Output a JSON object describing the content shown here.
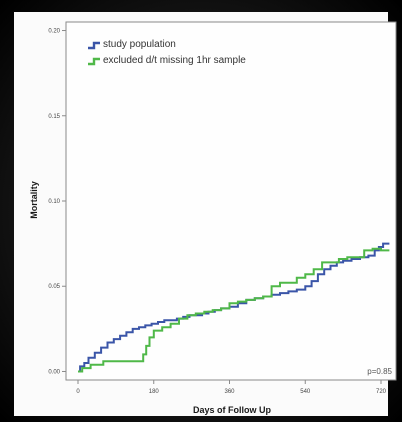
{
  "chart_data": {
    "type": "line",
    "step": true,
    "xlabel": "Days of Follow Up",
    "ylabel": "Mortality",
    "xlim": [
      0,
      740
    ],
    "ylim": [
      -0.005,
      0.205
    ],
    "xticks": [
      0,
      180,
      360,
      540,
      720
    ],
    "yticks": [
      0.0,
      0.05,
      0.1,
      0.15,
      0.2
    ],
    "ytick_labels": [
      "0.00",
      "0.05",
      "0.10",
      "0.15",
      "0.20"
    ],
    "xtick_labels": [
      "0",
      "180",
      "360",
      "540",
      "720"
    ],
    "grid": false,
    "legend_position": "top-left",
    "annotation": "p=0.85",
    "series": [
      {
        "name": "study population",
        "color": "#3a55a8",
        "points": [
          [
            0,
            0.0
          ],
          [
            5,
            0.003
          ],
          [
            15,
            0.005
          ],
          [
            25,
            0.008
          ],
          [
            40,
            0.011
          ],
          [
            55,
            0.014
          ],
          [
            70,
            0.017
          ],
          [
            85,
            0.019
          ],
          [
            100,
            0.021
          ],
          [
            115,
            0.023
          ],
          [
            130,
            0.025
          ],
          [
            145,
            0.026
          ],
          [
            160,
            0.027
          ],
          [
            175,
            0.028
          ],
          [
            190,
            0.029
          ],
          [
            205,
            0.03
          ],
          [
            220,
            0.03
          ],
          [
            235,
            0.031
          ],
          [
            250,
            0.032
          ],
          [
            265,
            0.033
          ],
          [
            280,
            0.033
          ],
          [
            295,
            0.034
          ],
          [
            310,
            0.035
          ],
          [
            325,
            0.036
          ],
          [
            340,
            0.037
          ],
          [
            360,
            0.038
          ],
          [
            380,
            0.04
          ],
          [
            400,
            0.042
          ],
          [
            420,
            0.043
          ],
          [
            440,
            0.044
          ],
          [
            460,
            0.045
          ],
          [
            480,
            0.046
          ],
          [
            500,
            0.047
          ],
          [
            520,
            0.048
          ],
          [
            540,
            0.05
          ],
          [
            555,
            0.053
          ],
          [
            570,
            0.057
          ],
          [
            585,
            0.06
          ],
          [
            600,
            0.062
          ],
          [
            615,
            0.064
          ],
          [
            630,
            0.065
          ],
          [
            650,
            0.066
          ],
          [
            670,
            0.067
          ],
          [
            690,
            0.068
          ],
          [
            705,
            0.071
          ],
          [
            715,
            0.073
          ],
          [
            725,
            0.075
          ],
          [
            740,
            0.075
          ]
        ]
      },
      {
        "name": "excluded d/t missing 1hr sample",
        "color": "#4fb848",
        "points": [
          [
            0,
            0.0
          ],
          [
            10,
            0.002
          ],
          [
            30,
            0.004
          ],
          [
            60,
            0.006
          ],
          [
            150,
            0.006
          ],
          [
            155,
            0.01
          ],
          [
            162,
            0.015
          ],
          [
            170,
            0.02
          ],
          [
            180,
            0.024
          ],
          [
            200,
            0.026
          ],
          [
            220,
            0.028
          ],
          [
            240,
            0.031
          ],
          [
            260,
            0.033
          ],
          [
            280,
            0.034
          ],
          [
            300,
            0.035
          ],
          [
            320,
            0.036
          ],
          [
            340,
            0.037
          ],
          [
            360,
            0.04
          ],
          [
            380,
            0.041
          ],
          [
            400,
            0.042
          ],
          [
            420,
            0.043
          ],
          [
            440,
            0.044
          ],
          [
            460,
            0.05
          ],
          [
            480,
            0.052
          ],
          [
            500,
            0.052
          ],
          [
            520,
            0.055
          ],
          [
            540,
            0.057
          ],
          [
            560,
            0.06
          ],
          [
            580,
            0.064
          ],
          [
            600,
            0.064
          ],
          [
            620,
            0.066
          ],
          [
            640,
            0.067
          ],
          [
            660,
            0.067
          ],
          [
            680,
            0.071
          ],
          [
            700,
            0.072
          ],
          [
            720,
            0.071
          ],
          [
            740,
            0.071
          ]
        ]
      }
    ]
  }
}
